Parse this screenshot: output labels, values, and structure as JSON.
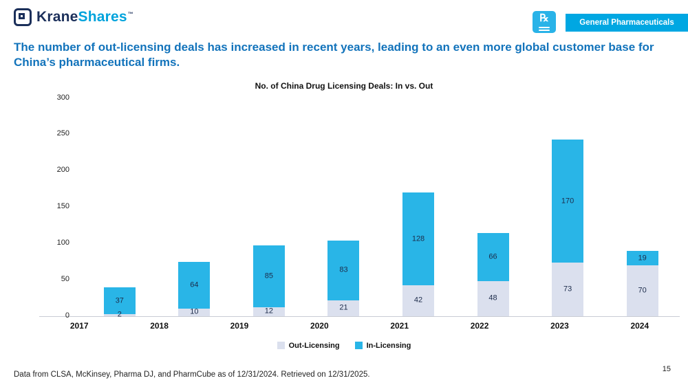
{
  "header": {
    "logo_krane": "Krane",
    "logo_shares": "Shares",
    "logo_tm": "™",
    "category_badge": "General Pharmaceuticals"
  },
  "headline": "The number of out-licensing deals has increased in recent years, leading to an even more global customer base for China’s pharmaceutical firms.",
  "chart_data": {
    "type": "bar",
    "stacked": true,
    "title": "No. of China Drug Licensing Deals: In vs. Out",
    "categories": [
      "2017",
      "2018",
      "2019",
      "2020",
      "2021",
      "2022",
      "2023",
      "2024"
    ],
    "series": [
      {
        "name": "Out-Licensing",
        "color": "#dbe0ee",
        "values": [
          2,
          10,
          12,
          21,
          42,
          48,
          73,
          70
        ]
      },
      {
        "name": "In-Licensing",
        "color": "#29b5e7",
        "values": [
          37,
          64,
          85,
          83,
          128,
          66,
          170,
          19
        ]
      }
    ],
    "xlabel": "",
    "ylabel": "",
    "ylim": [
      0,
      300
    ],
    "y_ticks": [
      0,
      50,
      100,
      150,
      200,
      250,
      300
    ],
    "grid": false,
    "legend_position": "bottom"
  },
  "footer": {
    "source": "Data from CLSA, McKinsey, Pharma DJ, and PharmCube as of 12/31/2024. Retrieved on 12/31/2025.",
    "page_number": "15"
  }
}
